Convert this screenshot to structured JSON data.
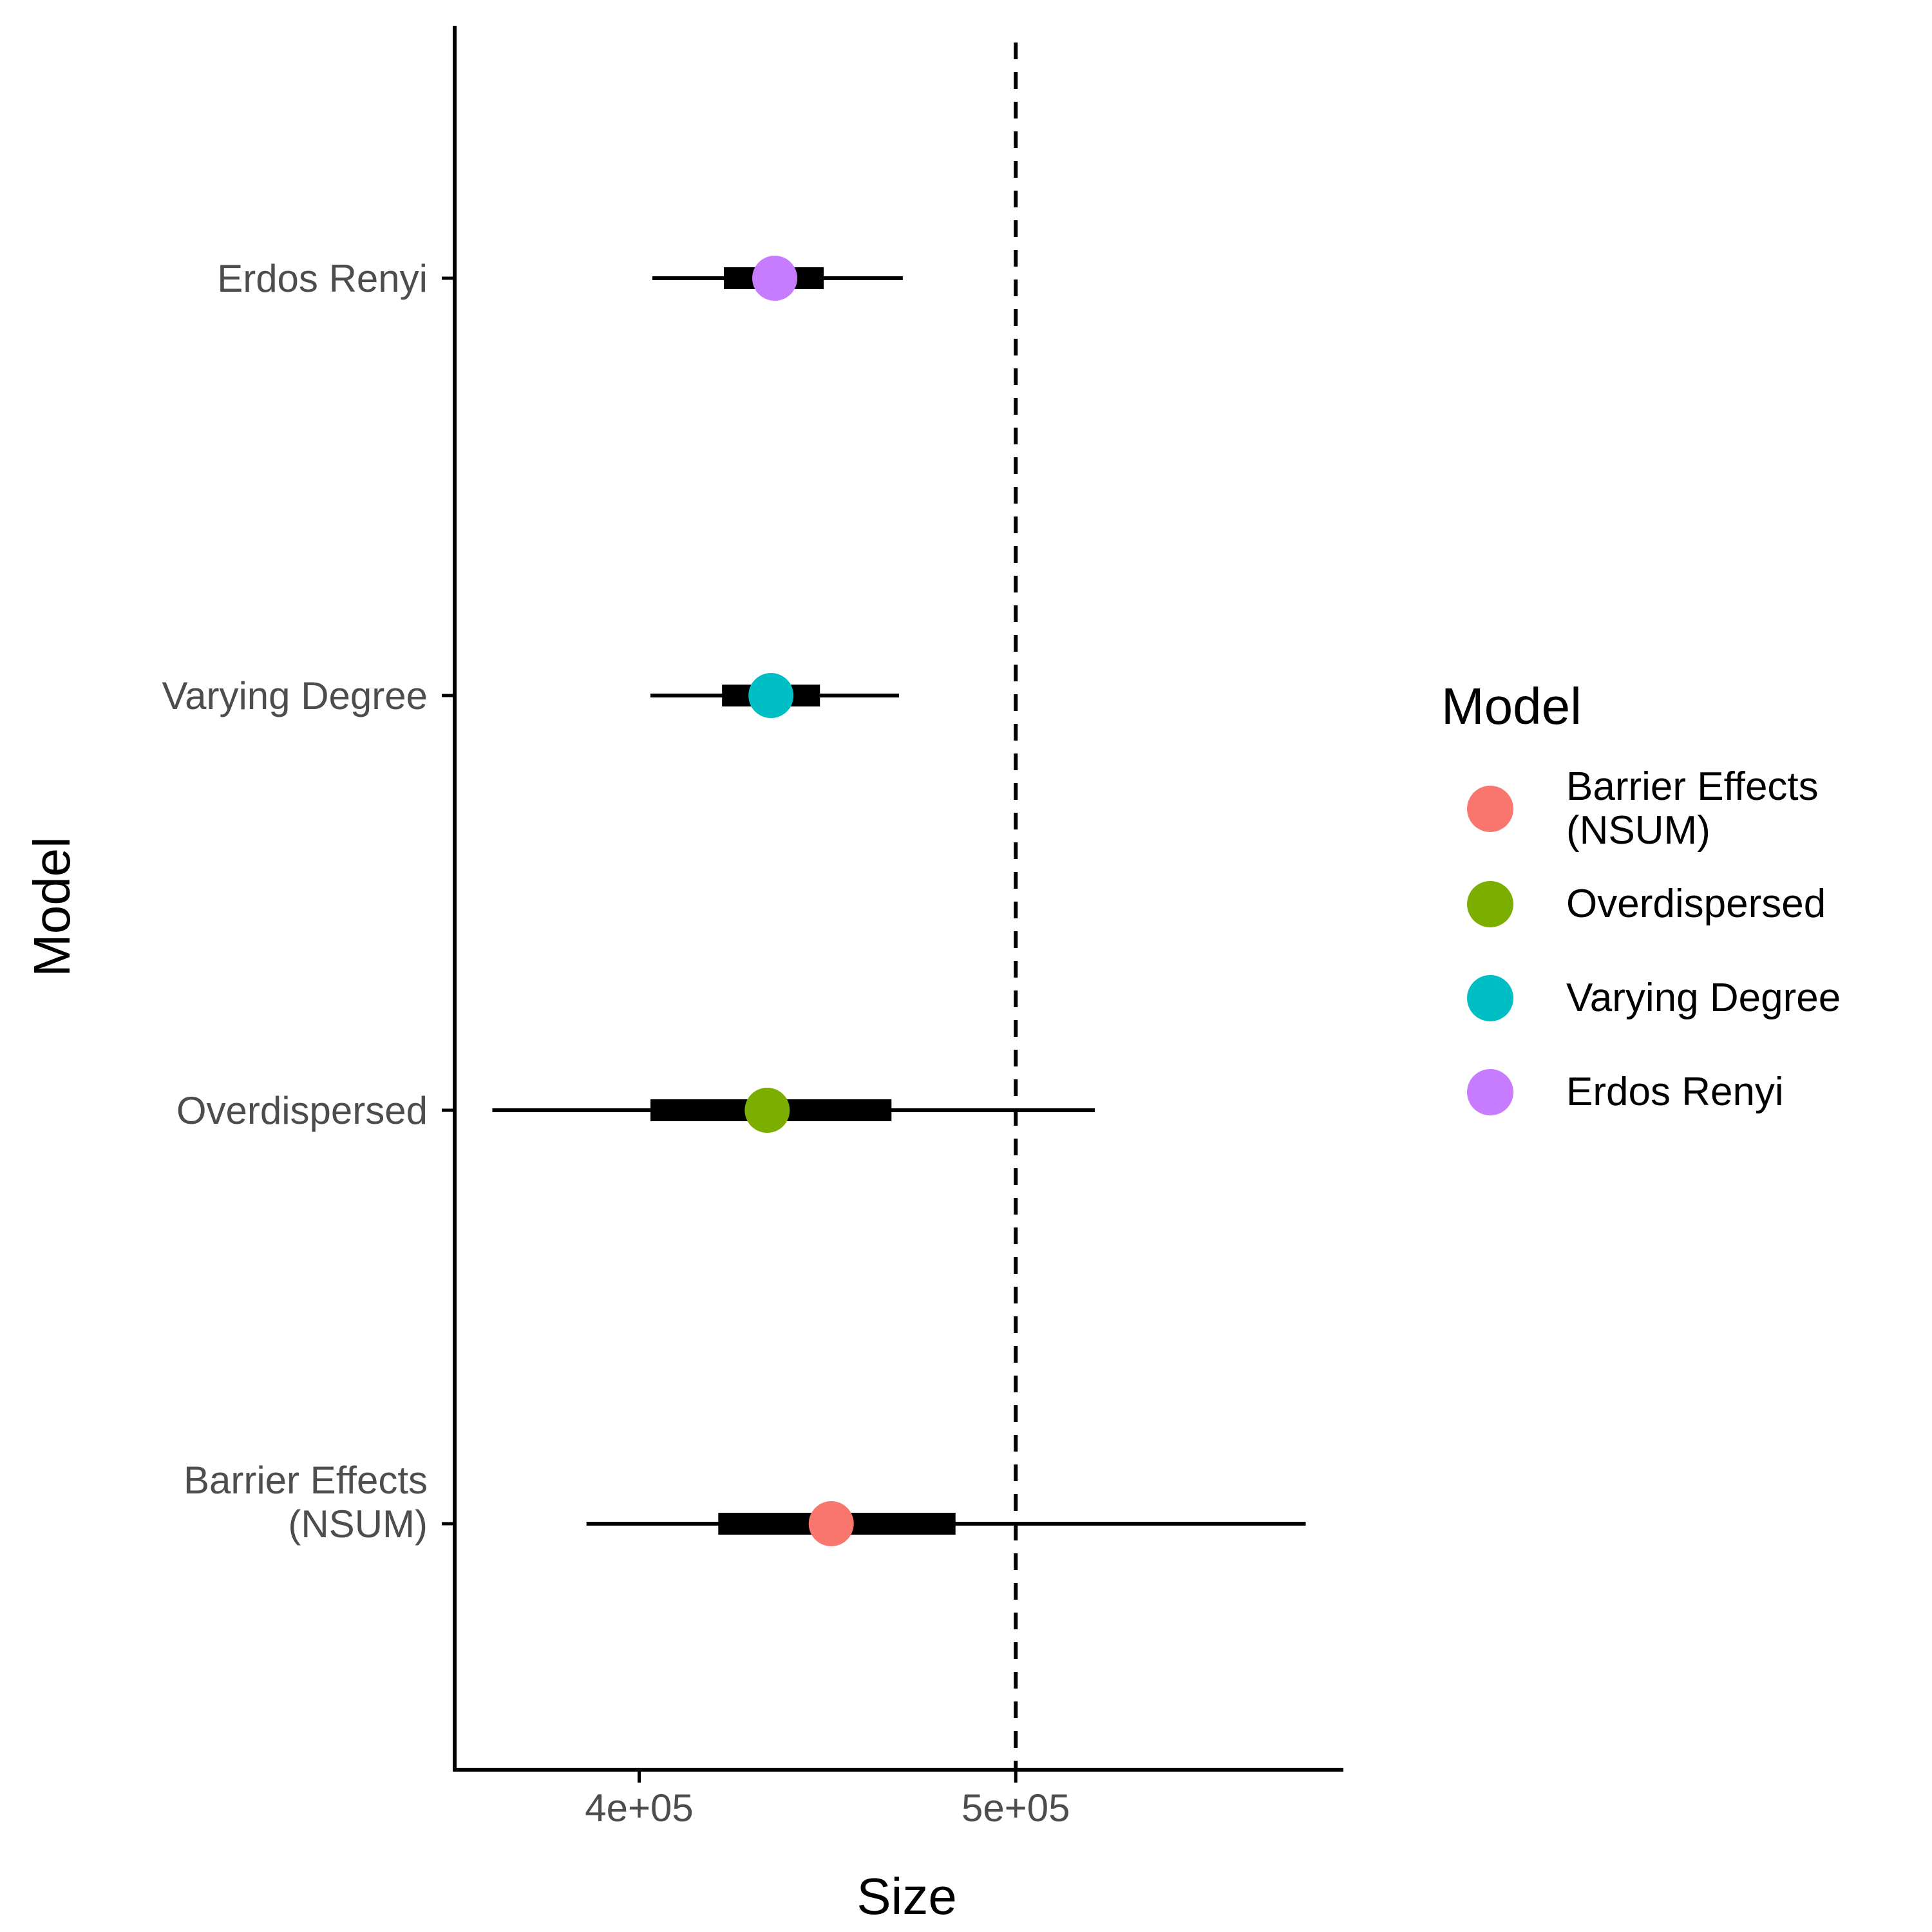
{
  "chart_data": {
    "type": "scatter",
    "subtype": "point-interval",
    "orientation": "horizontal",
    "xlabel": "Size",
    "ylabel": "Model",
    "xlim": [
      351000,
      587000
    ],
    "x_ticks": [
      {
        "value": 400000,
        "label": "4e+05"
      },
      {
        "value": 500000,
        "label": "5e+05"
      }
    ],
    "reference_line": {
      "value": 500000,
      "style": "dashed"
    },
    "categories": [
      {
        "label": [
          "Barrier Effects",
          "(NSUM)"
        ]
      },
      {
        "label": [
          "Overdispersed"
        ]
      },
      {
        "label": [
          "Varying Degree"
        ]
      },
      {
        "label": [
          "Erdos Renyi"
        ]
      }
    ],
    "series": [
      {
        "name": "Barrier Effects (NSUM)",
        "color": "#F8766D",
        "point": 451000,
        "inner": [
          421000,
          484000
        ],
        "outer": [
          386000,
          577000
        ]
      },
      {
        "name": "Overdispersed",
        "color": "#7CAE00",
        "point": 434000,
        "inner": [
          403000,
          467000
        ],
        "outer": [
          361000,
          521000
        ]
      },
      {
        "name": "Varying Degree",
        "color": "#00BFC4",
        "point": 435000,
        "inner": [
          422000,
          448000
        ],
        "outer": [
          403000,
          469000
        ]
      },
      {
        "name": "Erdos Renyi",
        "color": "#C77CFF",
        "point": 436000,
        "inner": [
          422500,
          449000
        ],
        "outer": [
          403500,
          470000
        ]
      }
    ],
    "legend": {
      "title": "Model",
      "position": "right",
      "items": [
        {
          "label": [
            "Barrier Effects",
            "(NSUM)"
          ],
          "color": "#F8766D"
        },
        {
          "label": [
            "Overdispersed"
          ],
          "color": "#7CAE00"
        },
        {
          "label": [
            "Varying Degree"
          ],
          "color": "#00BFC4"
        },
        {
          "label": [
            "Erdos Renyi"
          ],
          "color": "#C77CFF"
        }
      ]
    },
    "grid": false
  }
}
